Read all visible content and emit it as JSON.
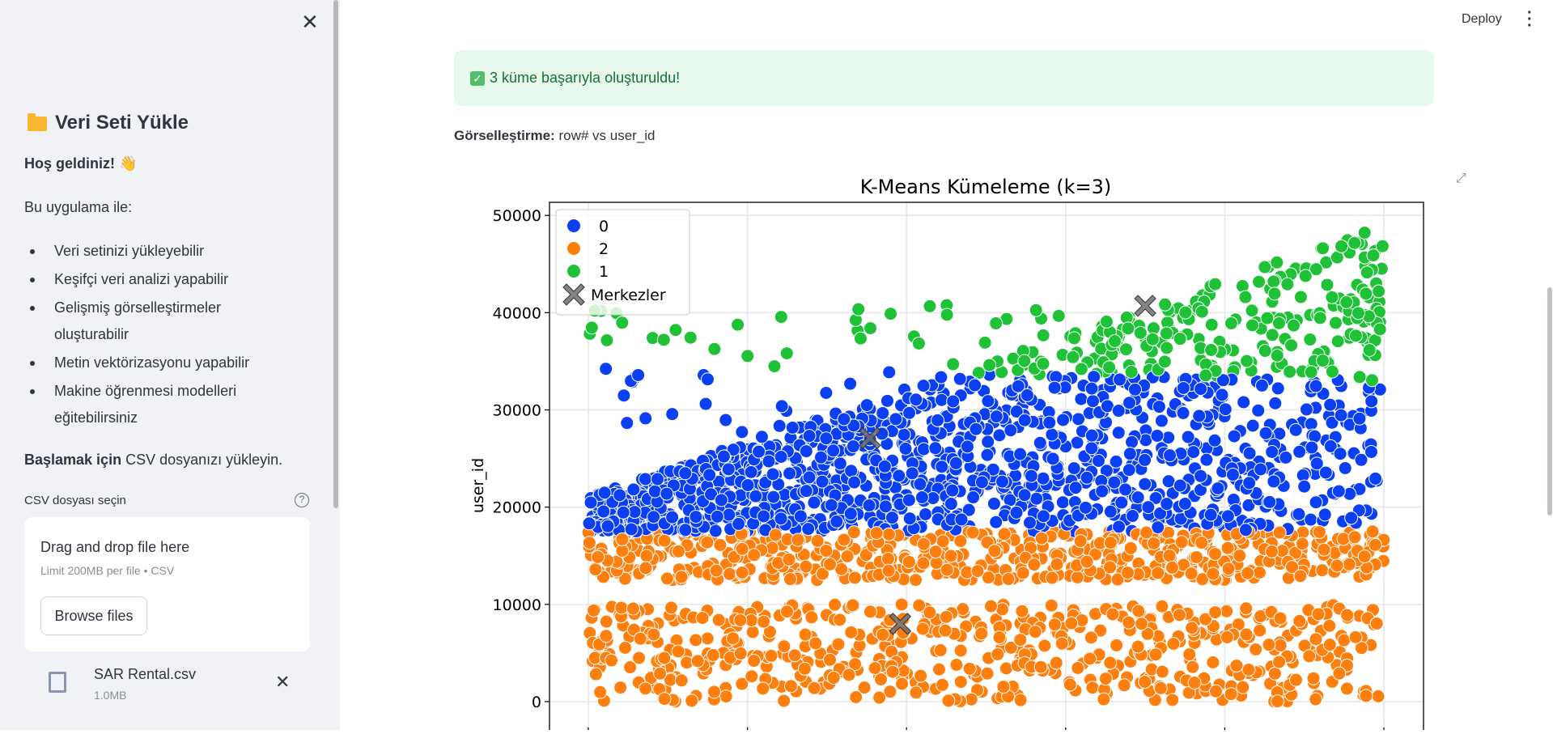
{
  "sidebar": {
    "title": "Veri Seti Yükle",
    "title_icon": "folder-icon",
    "welcome": "Hoş geldiniz!",
    "welcome_emoji": "👋",
    "intro": "Bu uygulama ile:",
    "features": [
      "Veri setinizi yükleyebilir",
      "Keşifçi veri analizi yapabilir",
      "Gelişmiş görselleştirmeler oluşturabilir",
      "Metin vektörizasyonu yapabilir",
      "Makine öğrenmesi modelleri eğitebilirsiniz"
    ],
    "start_bold": "Başlamak için",
    "start_rest": " CSV dosyanızı yükleyin.",
    "uploader_label": "CSV dosyası seçin",
    "help": "?",
    "drop_text": "Drag and drop file here",
    "limit_text": "Limit 200MB per file • CSV",
    "browse_label": "Browse files",
    "file": {
      "name": "SAR Rental.csv",
      "size": "1.0MB"
    }
  },
  "header": {
    "deploy_label": "Deploy"
  },
  "main": {
    "success_message": "3 küme başarıyla oluşturuldu!",
    "viz_label": "Görselleştirme:",
    "viz_value": " row# vs user_id"
  },
  "chart_data": {
    "type": "scatter",
    "title": "K-Means Kümeleme (k=3)",
    "xlabel": "",
    "ylabel": "user_id",
    "ylim": [
      -2000,
      51500
    ],
    "yticks": [
      "0",
      "10000",
      "20000",
      "30000",
      "40000",
      "50000"
    ],
    "grid": true,
    "legend_position": "top-left",
    "series": [
      {
        "name": "0",
        "color": "#0a3ff5",
        "y_range": [
          17000,
          35000
        ],
        "centroid_y": 27100
      },
      {
        "name": "2",
        "color": "#ff7f0e",
        "y_range": [
          0,
          17500
        ],
        "centroid_y": 8000
      },
      {
        "name": "1",
        "color": "#1fc236",
        "y_range": [
          33000,
          49000
        ],
        "centroid_y": 40700
      }
    ],
    "centroids_label": "Merkezler",
    "centroid_color": "#6e6e6e"
  }
}
